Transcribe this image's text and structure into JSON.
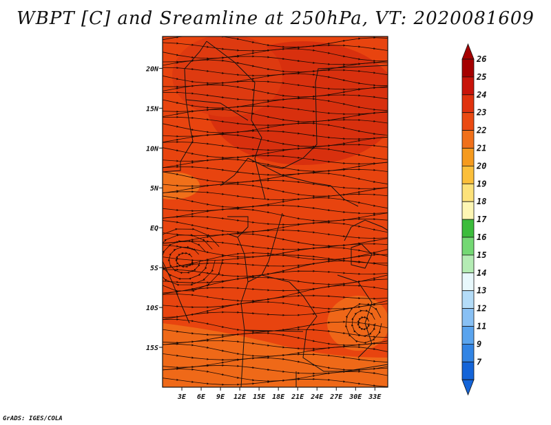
{
  "title": "WBPT [C] and Sreamline at 250hPa, VT: 2020081609",
  "credit": "GrADS: IGES/COLA",
  "map": {
    "lon_range": [
      0,
      35
    ],
    "lat_range": [
      -20,
      24
    ],
    "lat_ticks": [
      {
        "value": 20,
        "label": "20N"
      },
      {
        "value": 15,
        "label": "15N"
      },
      {
        "value": 10,
        "label": "10N"
      },
      {
        "value": 5,
        "label": "5N"
      },
      {
        "value": 0,
        "label": "EQ"
      },
      {
        "value": -5,
        "label": "5S"
      },
      {
        "value": -10,
        "label": "10S"
      },
      {
        "value": -15,
        "label": "15S"
      }
    ],
    "lon_ticks": [
      {
        "value": 3,
        "label": "3E"
      },
      {
        "value": 6,
        "label": "6E"
      },
      {
        "value": 9,
        "label": "9E"
      },
      {
        "value": 12,
        "label": "12E"
      },
      {
        "value": 15,
        "label": "15E"
      },
      {
        "value": 18,
        "label": "18E"
      },
      {
        "value": 21,
        "label": "21E"
      },
      {
        "value": 24,
        "label": "24E"
      },
      {
        "value": 27,
        "label": "27E"
      },
      {
        "value": 30,
        "label": "30E"
      },
      {
        "value": 33,
        "label": "33E"
      }
    ],
    "field_colors": {
      "dominant": "#ea4a12",
      "darker": "#d8300e",
      "lighter": "#f0701a"
    }
  },
  "colorbar": {
    "labels": [
      "26",
      "25",
      "24",
      "23",
      "22",
      "21",
      "20",
      "19",
      "18",
      "17",
      "16",
      "15",
      "14",
      "13",
      "12",
      "11",
      "9",
      "7"
    ],
    "colors": [
      "#a50000",
      "#c8140a",
      "#e0320e",
      "#ea4a12",
      "#f0701a",
      "#f59a1e",
      "#fbbf3a",
      "#fde27a",
      "#fdf6b4",
      "#3cbc3c",
      "#74d874",
      "#b4ecb4",
      "#e8f8fc",
      "#b4dcf8",
      "#88c0f4",
      "#5aa4ee",
      "#3284e4",
      "#1464d8"
    ]
  }
}
